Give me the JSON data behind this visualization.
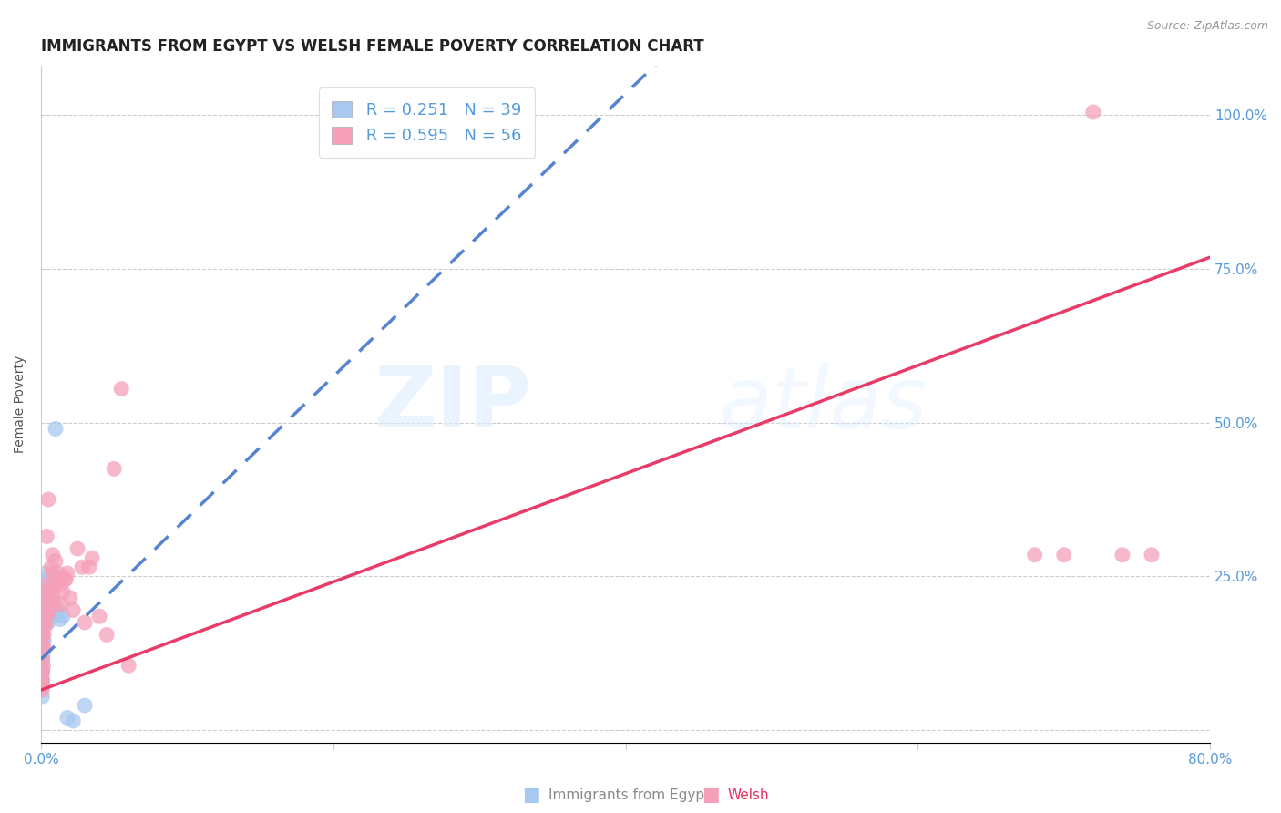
{
  "title": "IMMIGRANTS FROM EGYPT VS WELSH FEMALE POVERTY CORRELATION CHART",
  "source": "Source: ZipAtlas.com",
  "xlabel_blue": "Immigrants from Egypt",
  "xlabel_pink": "Welsh",
  "ylabel": "Female Poverty",
  "xlim": [
    0.0,
    0.8
  ],
  "ylim": [
    -0.02,
    1.08
  ],
  "blue_R": 0.251,
  "blue_N": 39,
  "pink_R": 0.595,
  "pink_N": 56,
  "blue_color": "#A8C8F0",
  "pink_color": "#F5A0B8",
  "blue_line_color": "#4477CC",
  "pink_line_color": "#E83060",
  "blue_line_intercept": 0.115,
  "blue_line_slope": 2.3,
  "pink_line_intercept": 0.065,
  "pink_line_slope": 0.88,
  "background_color": "#FFFFFF",
  "grid_color": "#CCCCCC",
  "title_fontsize": 12,
  "label_fontsize": 10,
  "tick_label_color": "#5599DD",
  "blue_points": [
    [
      0.0005,
      0.085
    ],
    [
      0.0006,
      0.09
    ],
    [
      0.0007,
      0.075
    ],
    [
      0.0008,
      0.1
    ],
    [
      0.001,
      0.055
    ],
    [
      0.001,
      0.07
    ],
    [
      0.001,
      0.08
    ],
    [
      0.001,
      0.095
    ],
    [
      0.001,
      0.115
    ],
    [
      0.001,
      0.13
    ],
    [
      0.001,
      0.145
    ],
    [
      0.001,
      0.16
    ],
    [
      0.0015,
      0.125
    ],
    [
      0.002,
      0.145
    ],
    [
      0.002,
      0.175
    ],
    [
      0.002,
      0.195
    ],
    [
      0.002,
      0.225
    ],
    [
      0.003,
      0.19
    ],
    [
      0.003,
      0.21
    ],
    [
      0.003,
      0.235
    ],
    [
      0.003,
      0.255
    ],
    [
      0.0035,
      0.2
    ],
    [
      0.004,
      0.225
    ],
    [
      0.004,
      0.245
    ],
    [
      0.005,
      0.175
    ],
    [
      0.005,
      0.185
    ],
    [
      0.005,
      0.205
    ],
    [
      0.006,
      0.22
    ],
    [
      0.007,
      0.195
    ],
    [
      0.008,
      0.215
    ],
    [
      0.009,
      0.185
    ],
    [
      0.01,
      0.19
    ],
    [
      0.012,
      0.195
    ],
    [
      0.013,
      0.18
    ],
    [
      0.015,
      0.185
    ],
    [
      0.018,
      0.02
    ],
    [
      0.022,
      0.015
    ],
    [
      0.03,
      0.04
    ],
    [
      0.01,
      0.49
    ]
  ],
  "pink_points": [
    [
      0.0005,
      0.075
    ],
    [
      0.0006,
      0.085
    ],
    [
      0.0007,
      0.065
    ],
    [
      0.0008,
      0.095
    ],
    [
      0.001,
      0.08
    ],
    [
      0.001,
      0.095
    ],
    [
      0.001,
      0.115
    ],
    [
      0.001,
      0.135
    ],
    [
      0.001,
      0.155
    ],
    [
      0.0015,
      0.105
    ],
    [
      0.002,
      0.135
    ],
    [
      0.002,
      0.155
    ],
    [
      0.002,
      0.175
    ],
    [
      0.003,
      0.17
    ],
    [
      0.003,
      0.195
    ],
    [
      0.003,
      0.215
    ],
    [
      0.003,
      0.235
    ],
    [
      0.004,
      0.185
    ],
    [
      0.004,
      0.225
    ],
    [
      0.004,
      0.315
    ],
    [
      0.005,
      0.195
    ],
    [
      0.005,
      0.375
    ],
    [
      0.006,
      0.215
    ],
    [
      0.006,
      0.195
    ],
    [
      0.007,
      0.22
    ],
    [
      0.007,
      0.265
    ],
    [
      0.008,
      0.255
    ],
    [
      0.008,
      0.285
    ],
    [
      0.009,
      0.205
    ],
    [
      0.009,
      0.235
    ],
    [
      0.01,
      0.275
    ],
    [
      0.011,
      0.245
    ],
    [
      0.012,
      0.255
    ],
    [
      0.013,
      0.235
    ],
    [
      0.014,
      0.205
    ],
    [
      0.015,
      0.225
    ],
    [
      0.016,
      0.245
    ],
    [
      0.017,
      0.245
    ],
    [
      0.018,
      0.255
    ],
    [
      0.02,
      0.215
    ],
    [
      0.022,
      0.195
    ],
    [
      0.025,
      0.295
    ],
    [
      0.028,
      0.265
    ],
    [
      0.03,
      0.175
    ],
    [
      0.033,
      0.265
    ],
    [
      0.035,
      0.28
    ],
    [
      0.04,
      0.185
    ],
    [
      0.045,
      0.155
    ],
    [
      0.05,
      0.425
    ],
    [
      0.055,
      0.555
    ],
    [
      0.06,
      0.105
    ],
    [
      0.68,
      0.285
    ],
    [
      0.7,
      0.285
    ],
    [
      0.72,
      1.005
    ],
    [
      0.74,
      0.285
    ],
    [
      0.76,
      0.285
    ]
  ]
}
